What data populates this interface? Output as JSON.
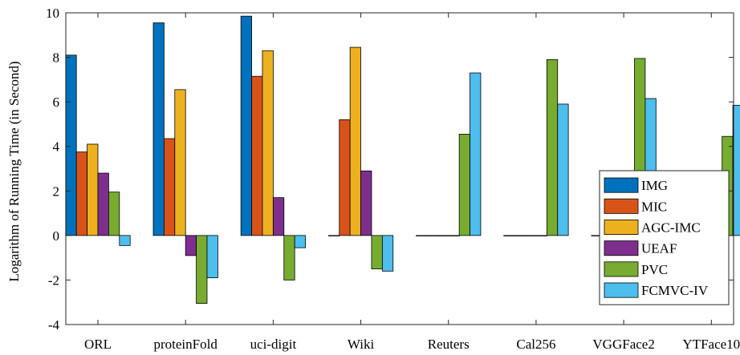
{
  "chart_data": {
    "type": "bar",
    "title": "",
    "xlabel": "",
    "ylabel": "Logarithm of Running Time (in Second)",
    "ylim": [
      -4,
      10
    ],
    "yticks": [
      -4,
      -2,
      0,
      2,
      4,
      6,
      8,
      10
    ],
    "grid": false,
    "legend_position": "right",
    "categories": [
      "ORL",
      "proteinFold",
      "uci-digit",
      "Wiki",
      "Reuters",
      "Cal256",
      "VGGFace2",
      "YTFace10"
    ],
    "series": [
      {
        "name": "IMG",
        "color": "#0072BD",
        "values": [
          8.1,
          9.55,
          9.85,
          0,
          0,
          0,
          0,
          0
        ]
      },
      {
        "name": "MIC",
        "color": "#D95319",
        "values": [
          3.75,
          4.35,
          7.15,
          5.2,
          0,
          0,
          0,
          0
        ]
      },
      {
        "name": "AGC-IMC",
        "color": "#EDB120",
        "values": [
          4.1,
          6.55,
          8.3,
          8.45,
          0,
          0,
          0,
          0
        ]
      },
      {
        "name": "UEAF",
        "color": "#7E2F8E",
        "values": [
          2.8,
          -0.9,
          1.7,
          2.9,
          0,
          0,
          0,
          0
        ]
      },
      {
        "name": "PVC",
        "color": "#77AC30",
        "values": [
          1.95,
          -3.05,
          -2.0,
          -1.5,
          4.55,
          7.9,
          7.95,
          4.45
        ]
      },
      {
        "name": "FCMVC-IV",
        "color": "#4DBEEE",
        "values": [
          -0.45,
          -1.9,
          -0.55,
          -1.6,
          7.3,
          5.9,
          6.15,
          5.85
        ]
      }
    ]
  }
}
